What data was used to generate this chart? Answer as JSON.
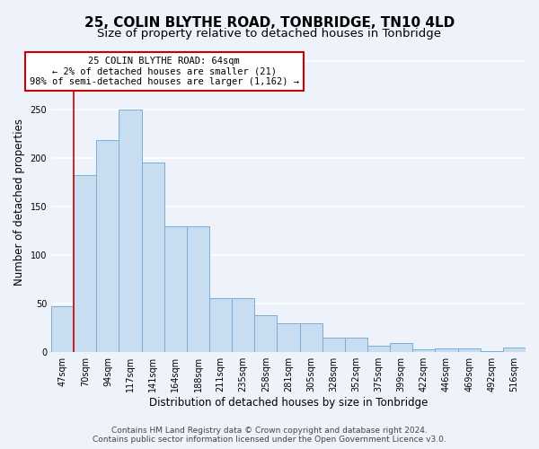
{
  "title": "25, COLIN BLYTHE ROAD, TONBRIDGE, TN10 4LD",
  "subtitle": "Size of property relative to detached houses in Tonbridge",
  "xlabel": "Distribution of detached houses by size in Tonbridge",
  "ylabel": "Number of detached properties",
  "categories": [
    "47sqm",
    "70sqm",
    "94sqm",
    "117sqm",
    "141sqm",
    "164sqm",
    "188sqm",
    "211sqm",
    "235sqm",
    "258sqm",
    "281sqm",
    "305sqm",
    "328sqm",
    "352sqm",
    "375sqm",
    "399sqm",
    "422sqm",
    "446sqm",
    "469sqm",
    "492sqm",
    "516sqm"
  ],
  "values": [
    47,
    183,
    219,
    250,
    196,
    130,
    130,
    56,
    56,
    38,
    30,
    30,
    15,
    15,
    7,
    9,
    3,
    4,
    4,
    1,
    5
  ],
  "bar_color": "#c9ddf0",
  "bar_edge_color": "#7aaed6",
  "annotation_text": "25 COLIN BLYTHE ROAD: 64sqm\n← 2% of detached houses are smaller (21)\n98% of semi-detached houses are larger (1,162) →",
  "annotation_facecolor": "#ffffff",
  "annotation_edgecolor": "#cc0000",
  "vline_x": 0.5,
  "ylim": [
    0,
    310
  ],
  "yticks": [
    0,
    50,
    100,
    150,
    200,
    250,
    300
  ],
  "footer_line1": "Contains HM Land Registry data © Crown copyright and database right 2024.",
  "footer_line2": "Contains public sector information licensed under the Open Government Licence v3.0.",
  "background_color": "#edf2fb",
  "grid_color": "#ffffff",
  "title_fontsize": 11,
  "subtitle_fontsize": 9.5,
  "ylabel_fontsize": 8.5,
  "xlabel_fontsize": 8.5,
  "tick_fontsize": 7,
  "annotation_fontsize": 7.5,
  "footer_fontsize": 6.5
}
